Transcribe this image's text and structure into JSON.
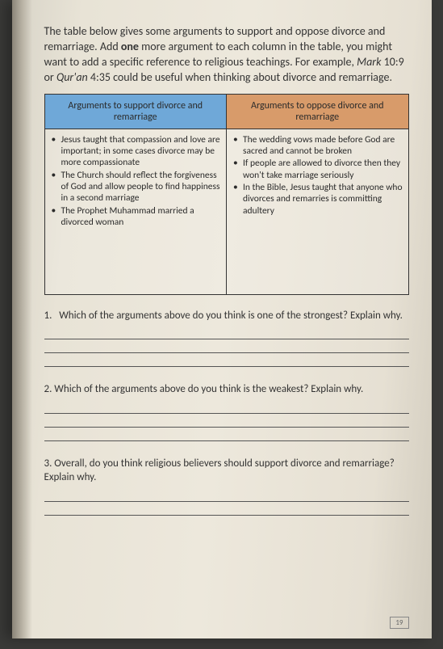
{
  "intro": {
    "part1": "The table below gives some arguments to support and oppose divorce and remarriage. Add ",
    "bold1": "one",
    "part2": " more argument to each column in the table, you might want to add a specific reference to religious teachings. For example, ",
    "italic1": "Mark",
    "part3": " 10:9 or ",
    "italic2": "Qur'an",
    "part4": " 4:35 could be useful when thinking about divorce and remarriage."
  },
  "table": {
    "header_support": "Arguments to support divorce and remarriage",
    "header_oppose": "Arguments to oppose divorce and remarriage",
    "support_items": [
      "Jesus taught that compassion and love are important; in some cases divorce may be more compassionate",
      "The Church should reflect the forgiveness of God and allow people to find happiness in a second marriage",
      "The Prophet Muhammad married a divorced woman"
    ],
    "oppose_items": [
      "The wedding vows made before God are sacred and cannot be broken",
      "If people are allowed to divorce then they won't take marriage seriously",
      "In the Bible, Jesus taught that anyone who divorces and remarries is committing adultery"
    ]
  },
  "questions": {
    "q1_num": "1.",
    "q1_text": "Which of the arguments above do you think is one of the strongest? Explain why.",
    "q2": "2. Which of the arguments above do you think is the weakest? Explain why.",
    "q3": "3. Overall, do you think religious believers should support divorce and remarriage? Explain why."
  },
  "page_number": "19",
  "colors": {
    "support_header": "#6fa8d8",
    "oppose_header": "#d89b6a"
  }
}
